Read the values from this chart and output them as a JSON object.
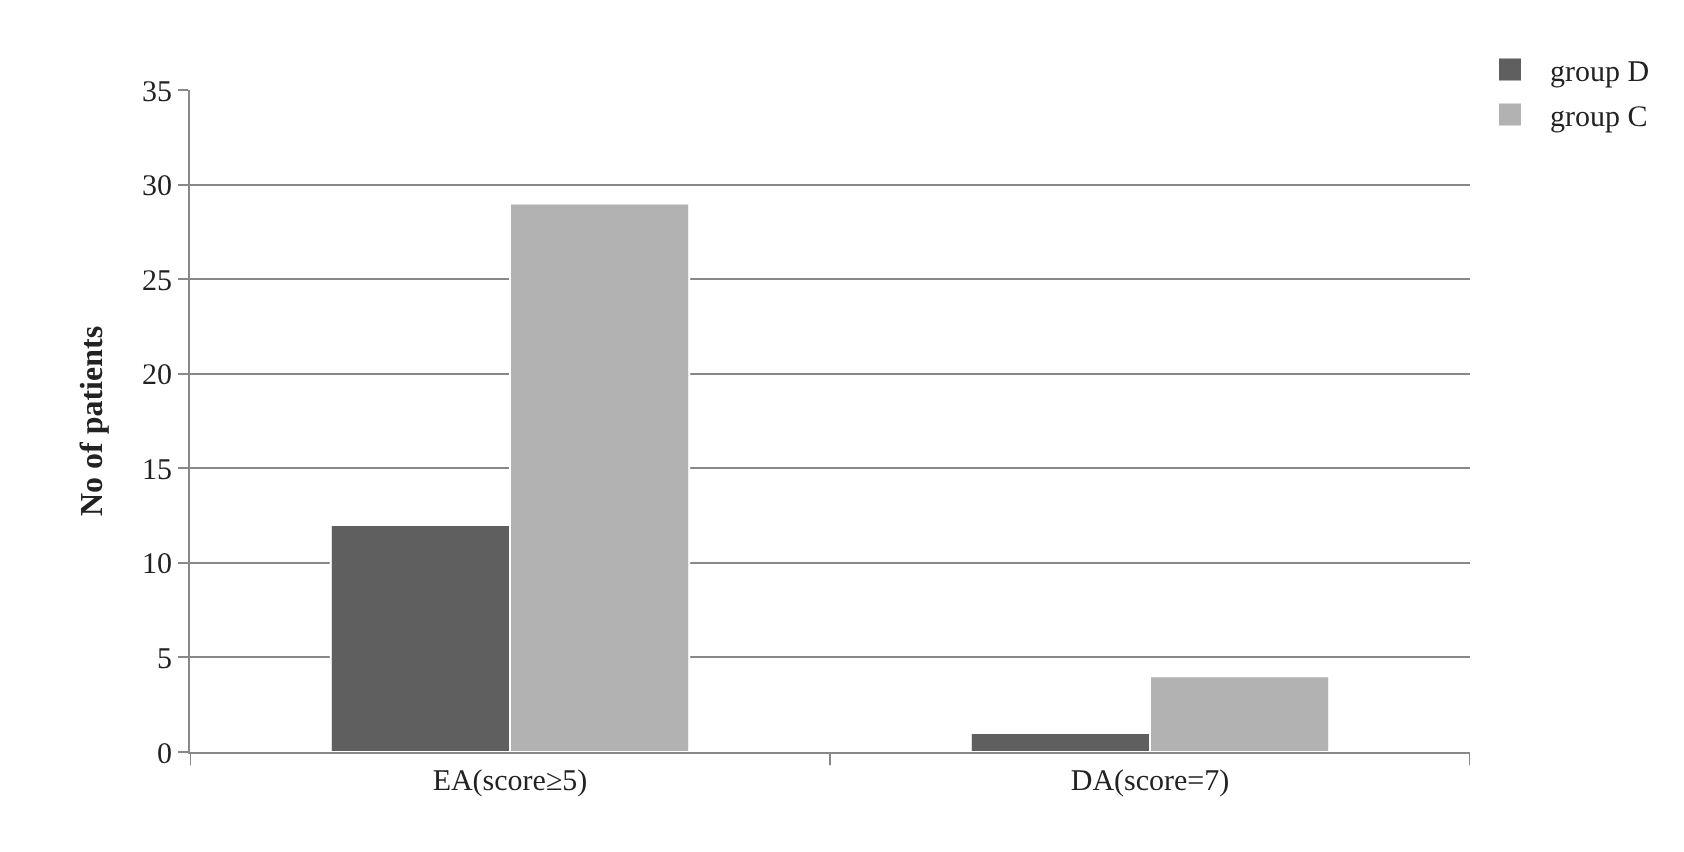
{
  "chart_data": {
    "type": "bar",
    "ylabel": "No of patients",
    "categories": [
      "EA(score≥5)",
      "DA(score=7)"
    ],
    "series": [
      {
        "name": "group D",
        "color": "#5f5f5f",
        "values": [
          12,
          1
        ]
      },
      {
        "name": "group C",
        "color": "#b2b2b2",
        "values": [
          29,
          4
        ]
      }
    ],
    "ylim": [
      0,
      35
    ],
    "yticks": [
      0,
      5,
      10,
      15,
      20,
      25,
      30,
      35
    ],
    "grid": "y",
    "legend": "top right"
  }
}
